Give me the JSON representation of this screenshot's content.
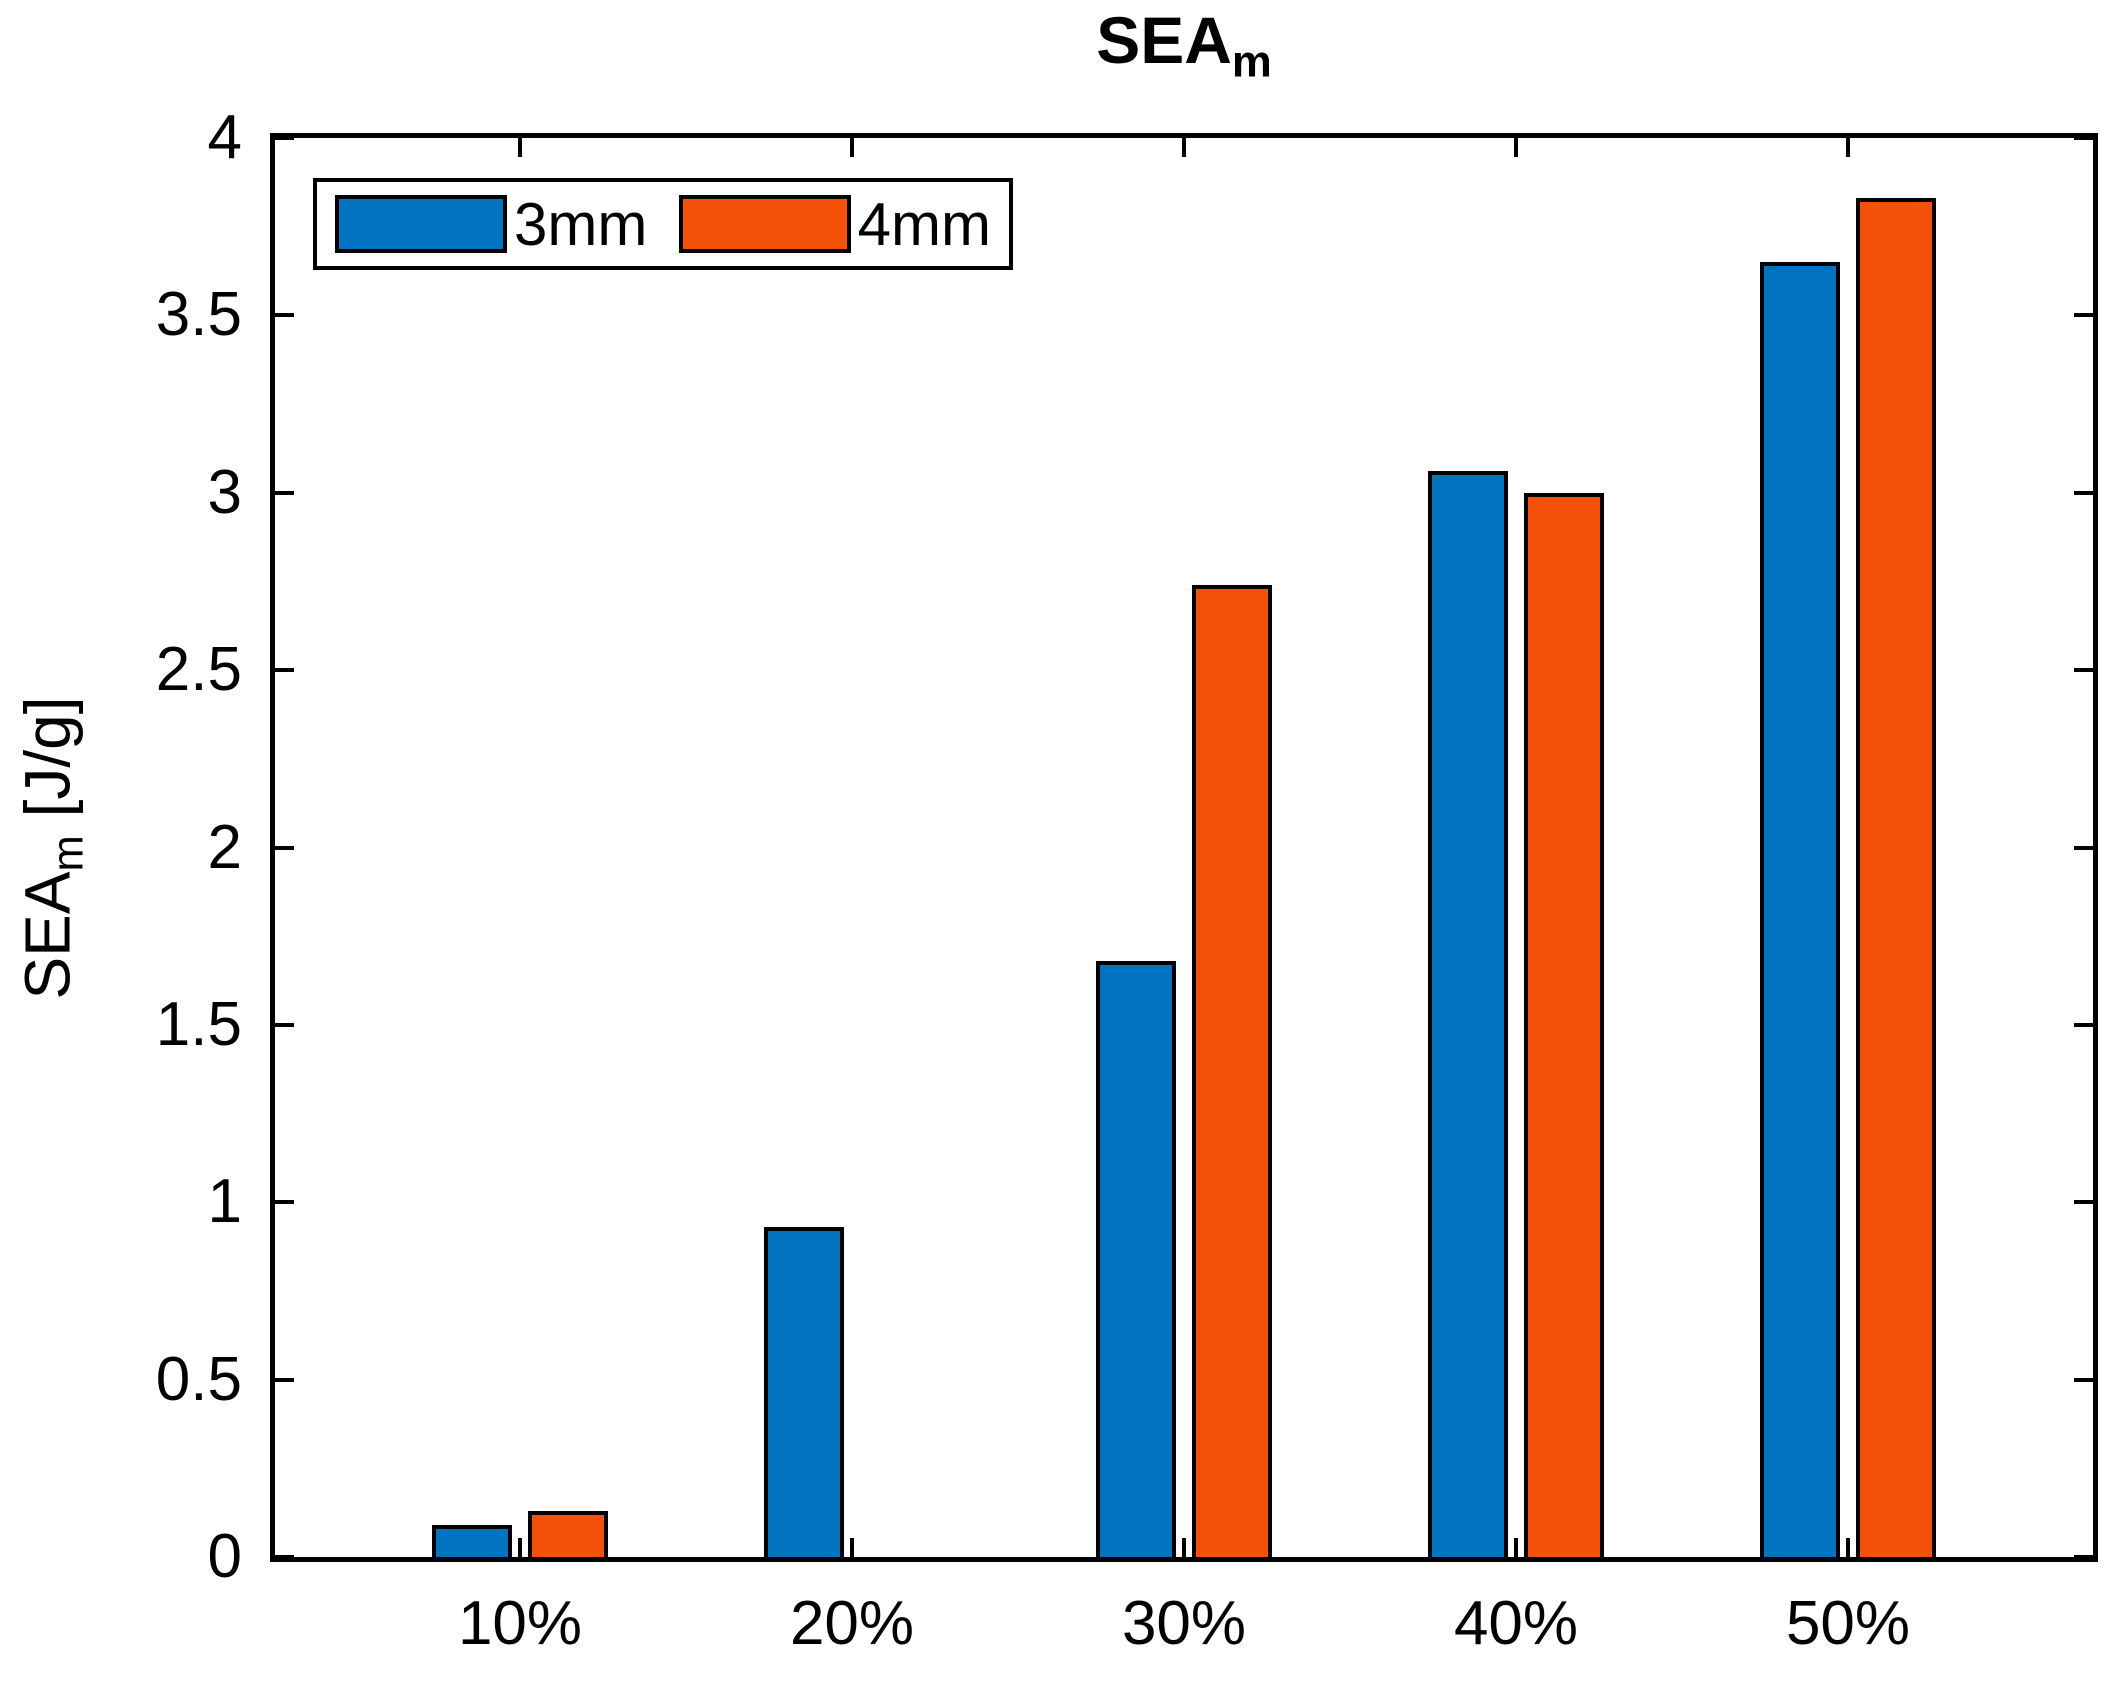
{
  "figure": {
    "title_main": "SEA",
    "title_sub": "m",
    "ylabel_main": "SEA",
    "ylabel_sub": "m",
    "ylabel_units": " [J/g]"
  },
  "legend": {
    "items": [
      {
        "label": "3mm",
        "color": "#0072BF"
      },
      {
        "label": "4mm",
        "color": "#F4520A"
      }
    ]
  },
  "chart_data": {
    "type": "bar",
    "title": "SEA_m",
    "ylabel": "SEA_m [J/g]",
    "xlabel": "",
    "categories": [
      "10%",
      "20%",
      "30%",
      "40%",
      "50%"
    ],
    "series": [
      {
        "name": "3mm",
        "color": "#0072BF",
        "values": [
          0.09,
          0.93,
          1.68,
          3.06,
          3.65
        ]
      },
      {
        "name": "4mm",
        "color": "#F4520A",
        "values": [
          0.13,
          0,
          2.74,
          3.0,
          3.83
        ]
      }
    ],
    "ylim": [
      0,
      4
    ],
    "yticks": [
      0,
      0.5,
      1,
      1.5,
      2,
      2.5,
      3,
      3.5,
      4
    ],
    "ytick_labels": [
      "0",
      "0.5",
      "1",
      "1.5",
      "2",
      "2.5",
      "3",
      "3.5",
      "4"
    ],
    "legend_position": "top-left",
    "grid": false,
    "axis_color": "#000000",
    "background": "#FFFFFF"
  }
}
